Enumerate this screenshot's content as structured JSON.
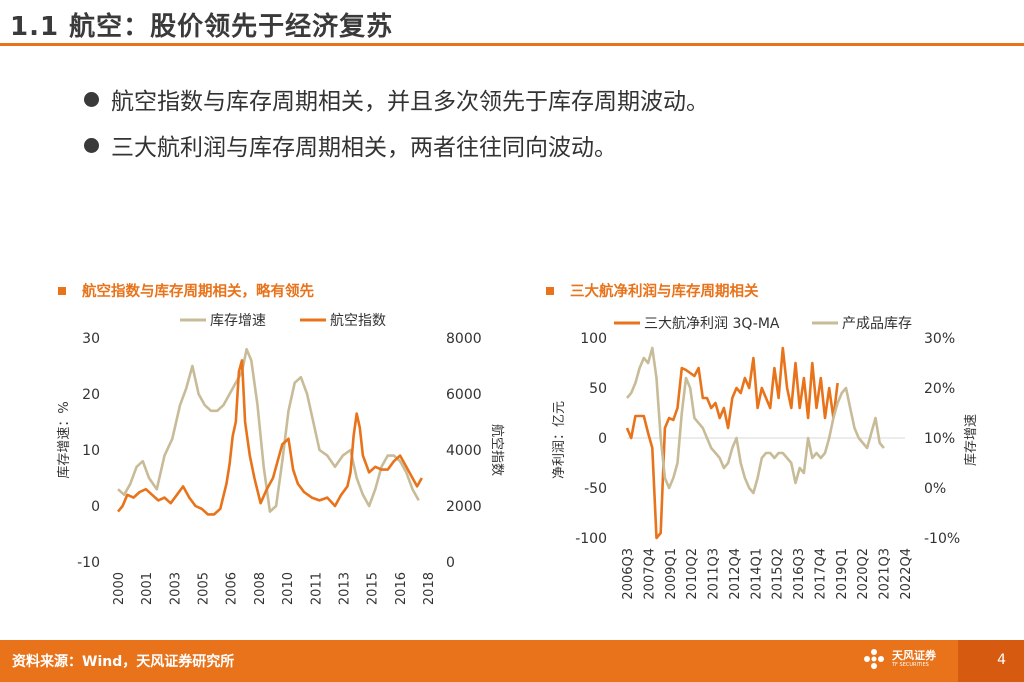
{
  "header": {
    "title": "1.1 航空：股价领先于经济复苏"
  },
  "bullets": [
    "航空指数与库存周期相关，并且多次领先于库存周期波动。",
    "三大航利润与库存周期相关，两者往往同向波动。"
  ],
  "colors": {
    "accent": "#e8731a",
    "series_khaki": "#c8bb98",
    "series_orange": "#e8731a"
  },
  "chart_data": [
    {
      "type": "line",
      "title": "航空指数与库存周期相关，略有领先",
      "x_ticks": [
        "2000",
        "2001",
        "2003",
        "2005",
        "2006",
        "2008",
        "2010",
        "2011",
        "2013",
        "2015",
        "2016",
        "2018"
      ],
      "x_range": [
        2000,
        2020
      ],
      "left_axis": {
        "label": "库存增速：%",
        "ticks": [
          "30",
          "20",
          "10",
          "0",
          "-10"
        ],
        "range": [
          -10,
          30
        ]
      },
      "right_axis": {
        "label": "航空指数",
        "ticks": [
          "8000",
          "6000",
          "4000",
          "2000",
          "0"
        ],
        "range": [
          0,
          8000
        ]
      },
      "series": [
        {
          "name": "库存增速",
          "axis": "left",
          "color": "#c8bb98",
          "x": [
            2000,
            2000.4,
            2000.8,
            2001.2,
            2001.6,
            2002,
            2002.5,
            2003,
            2003.5,
            2004,
            2004.4,
            2004.8,
            2005.2,
            2005.6,
            2006,
            2006.4,
            2006.8,
            2007.2,
            2007.6,
            2008,
            2008.3,
            2008.6,
            2009,
            2009.4,
            2009.8,
            2010.2,
            2010.6,
            2011,
            2011.4,
            2011.8,
            2012.2,
            2012.6,
            2013,
            2013.5,
            2014,
            2014.5,
            2015,
            2015.4,
            2015.8,
            2016.2,
            2016.6,
            2017,
            2017.4,
            2017.8,
            2018.2,
            2018.6,
            2019,
            2019.4
          ],
          "values": [
            3,
            2,
            4,
            7,
            8,
            5,
            3,
            9,
            12,
            18,
            21,
            25,
            20,
            18,
            17,
            17,
            18,
            20,
            22,
            24,
            28,
            26,
            18,
            7,
            -1,
            0,
            8,
            17,
            22,
            23,
            20,
            15,
            10,
            9,
            7,
            9,
            10,
            5,
            2,
            0,
            3,
            7,
            9,
            9,
            8,
            6,
            3,
            1
          ]
        },
        {
          "name": "航空指数",
          "axis": "right",
          "color": "#e8731a",
          "x": [
            2000,
            2000.3,
            2000.6,
            2001,
            2001.4,
            2001.8,
            2002.2,
            2002.6,
            2003,
            2003.4,
            2003.8,
            2004.2,
            2004.6,
            2005,
            2005.4,
            2005.8,
            2006.2,
            2006.6,
            2007,
            2007.2,
            2007.4,
            2007.6,
            2007.8,
            2008,
            2008.2,
            2008.5,
            2008.8,
            2009.2,
            2009.6,
            2010,
            2010.3,
            2010.6,
            2011,
            2011.3,
            2011.6,
            2012,
            2012.5,
            2013,
            2013.5,
            2014,
            2014.4,
            2014.8,
            2015,
            2015.2,
            2015.4,
            2015.6,
            2015.8,
            2016.2,
            2016.6,
            2017,
            2017.4,
            2017.8,
            2018.2,
            2018.6,
            2019,
            2019.3,
            2019.6
          ],
          "values": [
            1800,
            2000,
            2400,
            2300,
            2500,
            2600,
            2400,
            2200,
            2300,
            2100,
            2400,
            2700,
            2300,
            2000,
            1900,
            1700,
            1700,
            1900,
            2800,
            3500,
            4500,
            5000,
            6800,
            7200,
            5000,
            3800,
            3000,
            2100,
            2600,
            3000,
            3600,
            4200,
            4400,
            3300,
            2800,
            2500,
            2300,
            2200,
            2300,
            2000,
            2400,
            2700,
            3200,
            4500,
            5300,
            4800,
            3800,
            3200,
            3400,
            3300,
            3300,
            3600,
            3800,
            3400,
            3000,
            2700,
            3000
          ]
        }
      ],
      "legend": [
        "库存增速",
        "航空指数"
      ]
    },
    {
      "type": "line",
      "title": "三大航净利润与库存周期相关",
      "x_ticks": [
        "2006Q3",
        "2007Q4",
        "2009Q1",
        "2010Q2",
        "2011Q3",
        "2012Q4",
        "2014Q1",
        "2015Q2",
        "2016Q3",
        "2017Q4",
        "2019Q1",
        "2020Q2",
        "2021Q3",
        "2022Q4"
      ],
      "x_range": [
        0,
        66
      ],
      "left_axis": {
        "label": "净利润：亿元",
        "ticks": [
          "100",
          "50",
          "0",
          "-50",
          "-100"
        ],
        "range": [
          -100,
          100
        ]
      },
      "right_axis": {
        "label": "库存增速",
        "ticks": [
          "30%",
          "20%",
          "10%",
          "0%",
          "-10%"
        ],
        "range": [
          -10,
          30
        ]
      },
      "series": [
        {
          "name": "三大航净利润 3Q-MA",
          "axis": "left",
          "color": "#e8731a",
          "x": [
            0,
            1,
            2,
            3,
            4,
            5,
            6,
            7,
            8,
            9,
            10,
            11,
            12,
            13,
            14,
            15,
            16,
            17,
            18,
            19,
            20,
            21,
            22,
            23,
            24,
            25,
            26,
            27,
            28,
            29,
            30,
            31,
            32,
            33,
            34,
            35,
            36,
            37,
            38,
            39,
            40,
            41,
            42,
            43,
            44,
            45,
            46,
            47,
            48,
            49,
            50
          ],
          "values": [
            10,
            0,
            22,
            22,
            22,
            5,
            -10,
            -100,
            -95,
            10,
            20,
            18,
            30,
            70,
            68,
            65,
            62,
            70,
            40,
            40,
            30,
            35,
            20,
            30,
            10,
            40,
            50,
            45,
            60,
            50,
            80,
            30,
            50,
            40,
            30,
            70,
            40,
            90,
            50,
            30,
            75,
            30,
            60,
            20,
            75,
            30,
            60,
            20,
            50,
            20,
            55
          ]
        },
        {
          "name": "产成品库存",
          "axis": "right",
          "color": "#c8bb98",
          "x": [
            0,
            1,
            2,
            3,
            4,
            5,
            6,
            7,
            8,
            9,
            10,
            11,
            12,
            13,
            14,
            15,
            16,
            17,
            18,
            19,
            20,
            21,
            22,
            23,
            24,
            25,
            26,
            27,
            28,
            29,
            30,
            31,
            32,
            33,
            34,
            35,
            36,
            37,
            38,
            39,
            40,
            41,
            42,
            43,
            44,
            45,
            46,
            47,
            48,
            49,
            50,
            51,
            52,
            53,
            54,
            55,
            56,
            57,
            58,
            59,
            60,
            61
          ],
          "values": [
            18,
            19,
            21,
            24,
            26,
            25,
            28,
            22,
            10,
            2,
            0,
            2,
            5,
            15,
            22,
            20,
            14,
            13,
            12,
            10,
            8,
            7,
            6,
            4,
            5,
            8,
            10,
            5,
            2,
            0,
            -1,
            2,
            6,
            7,
            7,
            6,
            7,
            7,
            6,
            5,
            1,
            4,
            3,
            10,
            6,
            7,
            6,
            7,
            10,
            14,
            17,
            19,
            20,
            16,
            12,
            10,
            9,
            8,
            11,
            14,
            9,
            8
          ]
        }
      ],
      "legend": [
        "三大航净利润 3Q-MA",
        "产成品库存"
      ]
    }
  ],
  "footer": {
    "source": "资料来源：Wind，天风证券研究所",
    "brand_cn": "天风证券",
    "brand_en": "TF SECURITIES",
    "page": "4"
  }
}
